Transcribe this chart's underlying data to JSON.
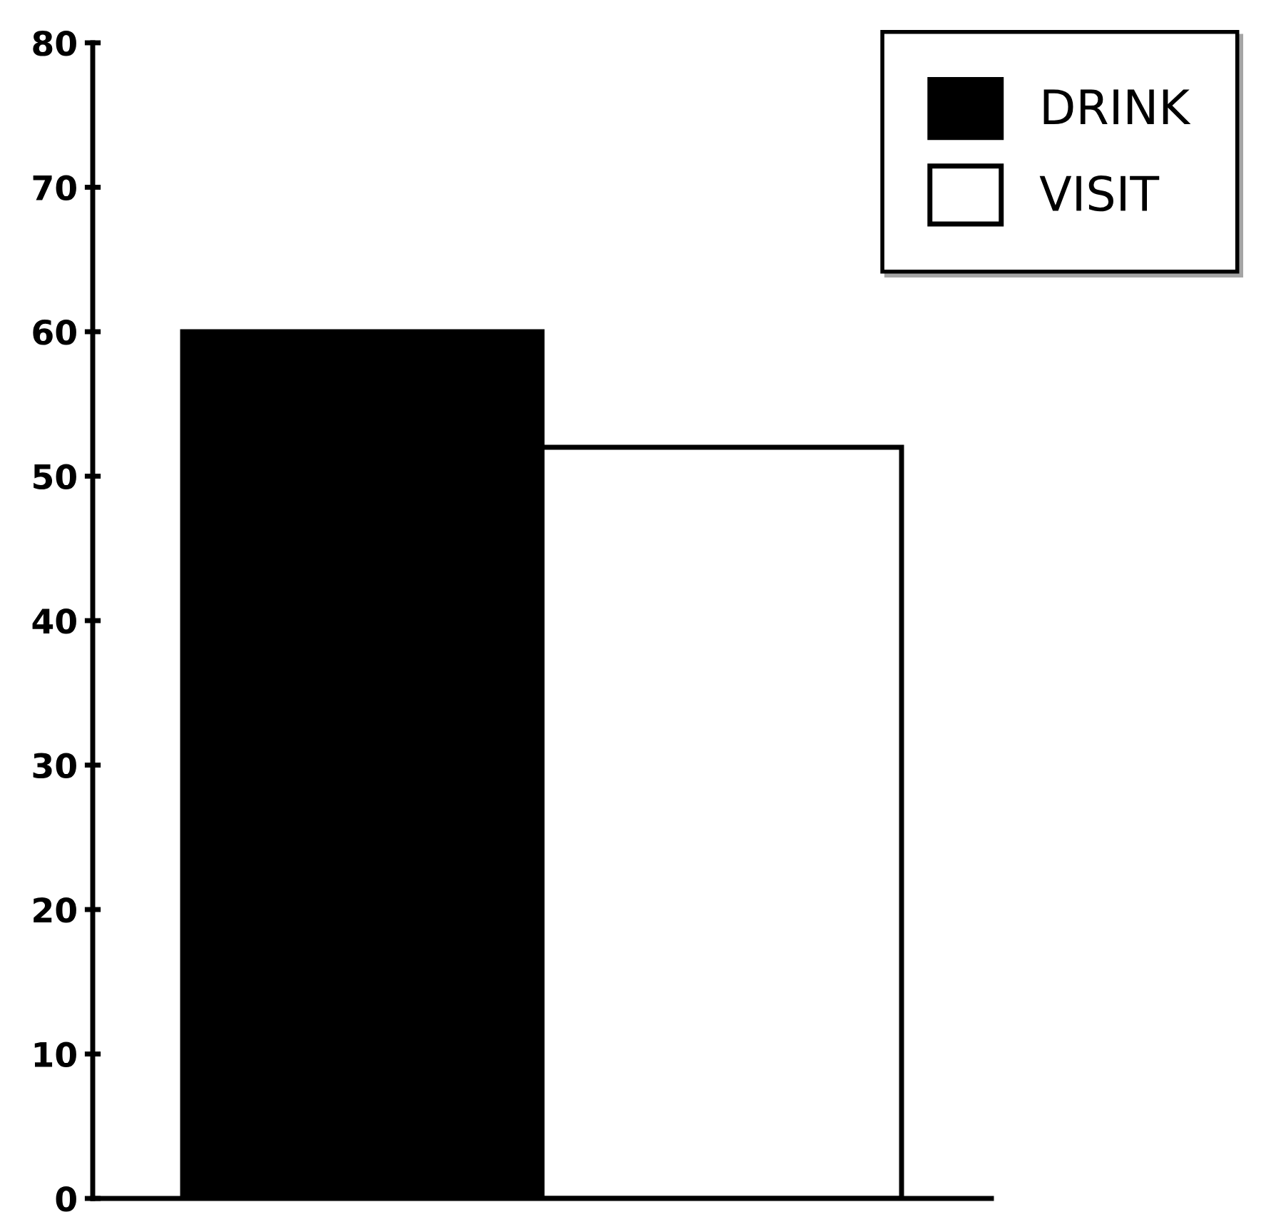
{
  "chart_data": {
    "type": "bar",
    "categories": [
      null
    ],
    "series": [
      {
        "name": "DRINK",
        "color": "#000000",
        "values": [
          60
        ]
      },
      {
        "name": "VISIT",
        "color": "#ffffff",
        "values": [
          52
        ]
      }
    ],
    "ylim": [
      0,
      80
    ],
    "yticks": [
      0,
      10,
      20,
      30,
      40,
      50,
      60,
      70,
      80
    ],
    "grid": false,
    "legend": "top right"
  }
}
